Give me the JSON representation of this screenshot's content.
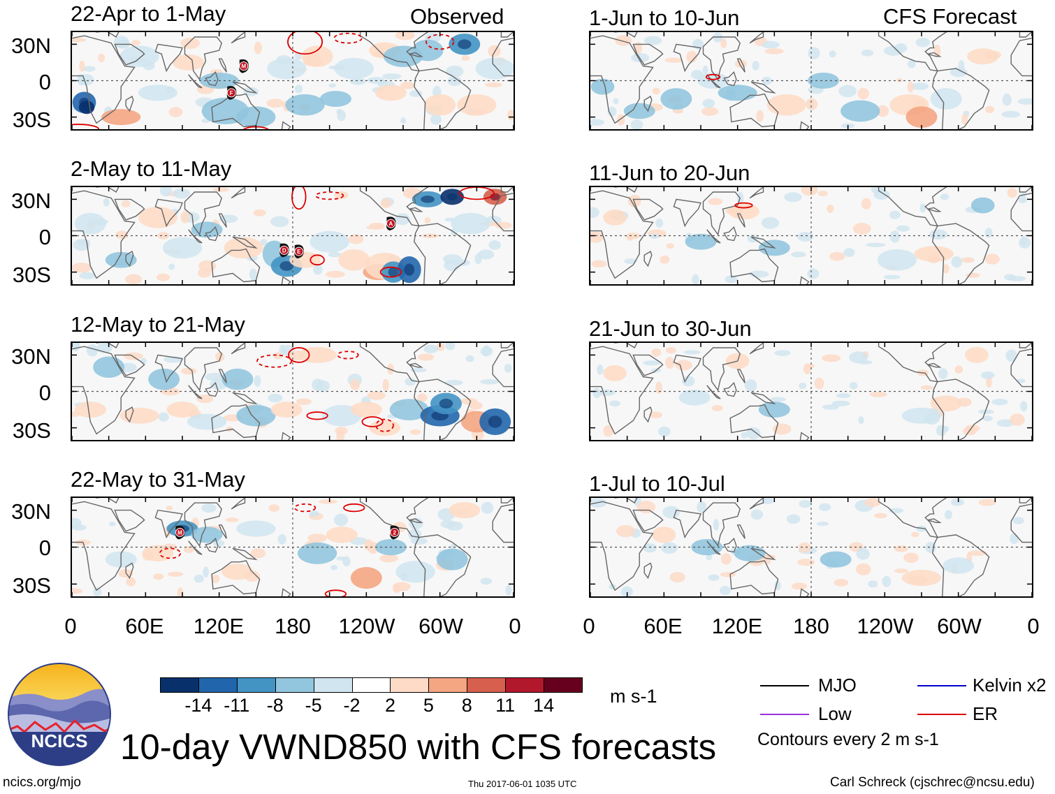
{
  "chart_data": {
    "type": "heatmap",
    "title": "10-day VWND850 with CFS forecasts",
    "variable": "VWND850",
    "units": "m s-1",
    "contour_note": "Contours every 2 m s-1",
    "column_headers": [
      "Observed",
      "CFS Forecast"
    ],
    "x_ticks": [
      "0",
      "60E",
      "120E",
      "180",
      "120W",
      "60W",
      "0"
    ],
    "y_ticks": [
      "30N",
      "0",
      "30S"
    ],
    "colorbar": {
      "levels": [
        "-14",
        "-11",
        "-8",
        "-5",
        "-2",
        "2",
        "5",
        "8",
        "11",
        "14"
      ],
      "colors": [
        "#08306b",
        "#2166ac",
        "#4393c3",
        "#92c5de",
        "#d1e5f0",
        "#ffffff",
        "#fddbc7",
        "#f4a582",
        "#d6604d",
        "#b2182b",
        "#67001f"
      ]
    },
    "legend": [
      {
        "label": "MJO",
        "color": "#000000"
      },
      {
        "label": "Kelvin x2",
        "color": "#0000cc"
      },
      {
        "label": "Low",
        "color": "#9b30d9"
      },
      {
        "label": "ER",
        "color": "#dd0000"
      }
    ],
    "panels_observed": [
      {
        "title": "22-Apr to 1-May",
        "storms": [
          "M",
          "F"
        ]
      },
      {
        "title": "2-May to 11-May",
        "storms": [
          "A",
          "D",
          "E"
        ]
      },
      {
        "title": "12-May to 21-May",
        "storms": []
      },
      {
        "title": "22-May to 31-May",
        "storms": [
          "M",
          "2"
        ]
      }
    ],
    "panels_forecast": [
      {
        "title": "1-Jun to 10-Jun"
      },
      {
        "title": "11-Jun to 20-Jun"
      },
      {
        "title": "21-Jun to 30-Jun"
      },
      {
        "title": "1-Jul to 10-Jul"
      }
    ]
  },
  "footer": {
    "logo_text": "NCICS",
    "url": "ncics.org/mjo",
    "timestamp": "Thu 2017-06-01 1035 UTC",
    "credit": "Carl Schreck (cjschrec@ncsu.edu)"
  }
}
